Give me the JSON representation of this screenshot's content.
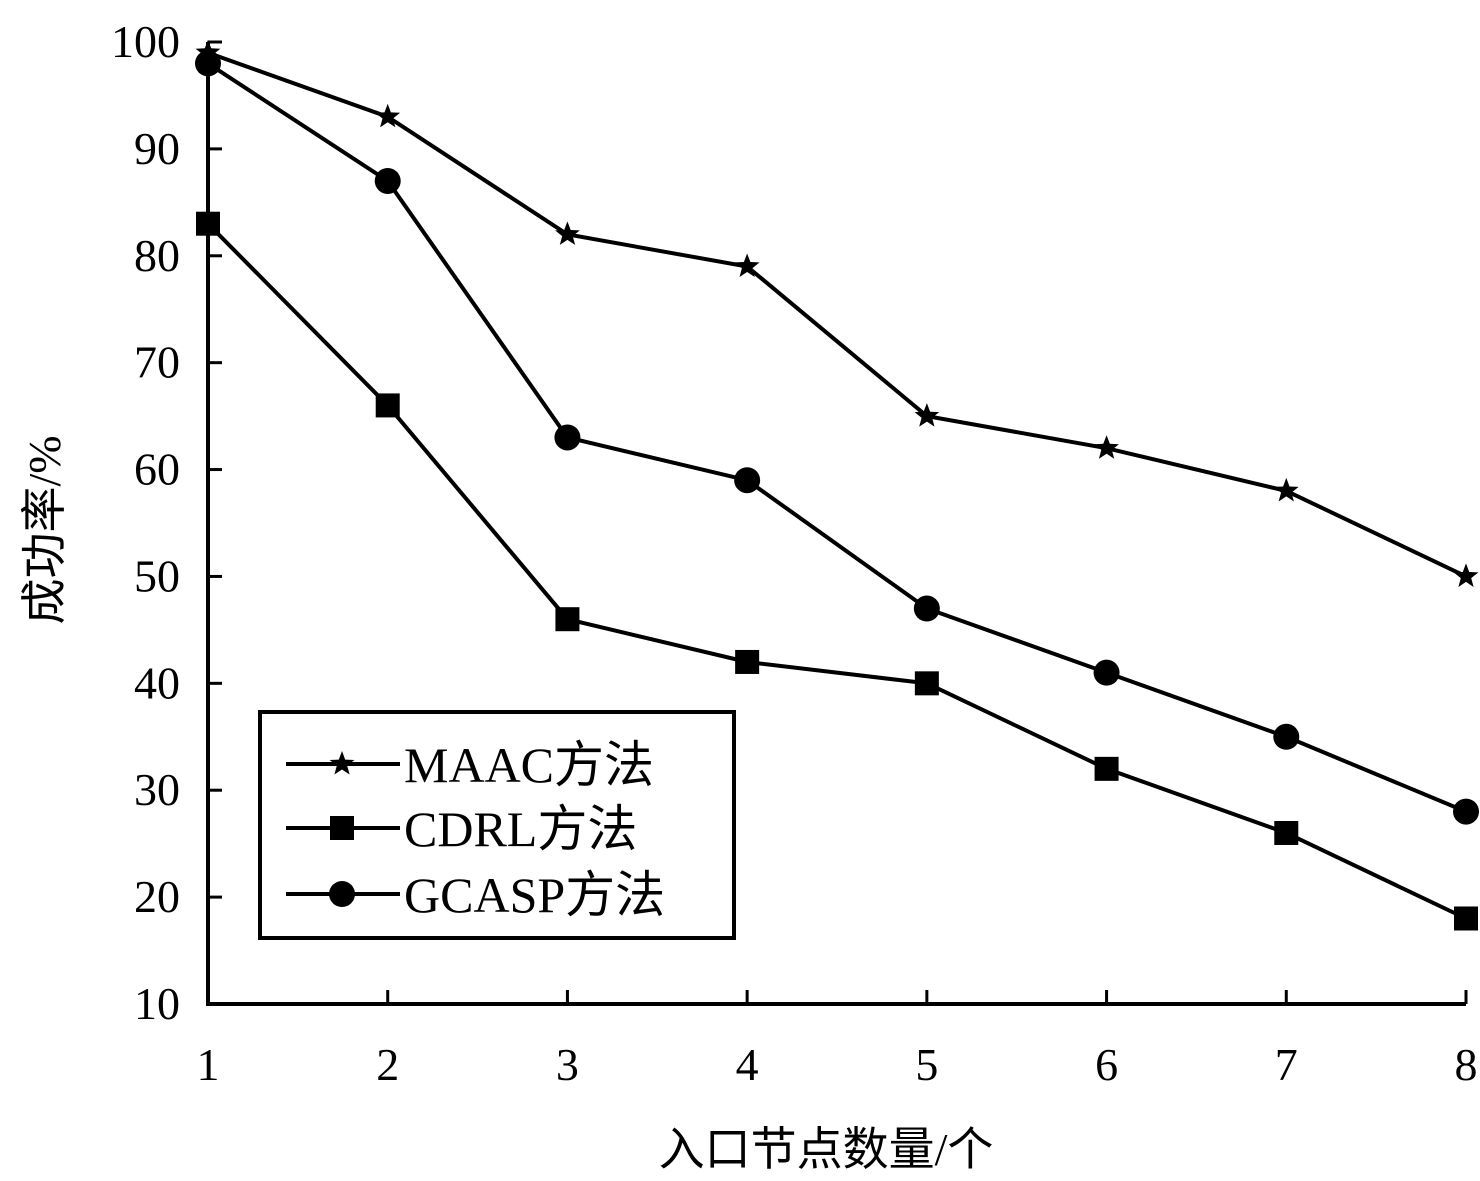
{
  "chart_data": {
    "type": "line",
    "title": "",
    "xlabel": "入口节点数量/个",
    "ylabel": "成功率/%",
    "x": [
      1,
      2,
      3,
      4,
      5,
      6,
      7,
      8
    ],
    "xlim": [
      1,
      8
    ],
    "ylim": [
      10,
      100
    ],
    "yticks": [
      10,
      20,
      30,
      40,
      50,
      60,
      70,
      80,
      90,
      100
    ],
    "grid": false,
    "legend_position": "bottom-left",
    "series": [
      {
        "name": "MAAC方法",
        "marker": "star",
        "values": [
          99,
          93,
          82,
          79,
          65,
          62,
          58,
          50
        ]
      },
      {
        "name": "CDRL方法",
        "marker": "square",
        "values": [
          83,
          66,
          46,
          42,
          40,
          32,
          26,
          18
        ]
      },
      {
        "name": "GCASP方法",
        "marker": "circle",
        "values": [
          98,
          87,
          63,
          59,
          47,
          41,
          35,
          28
        ]
      }
    ],
    "colors": {
      "line": "#000000",
      "marker": "#000000",
      "background": "#ffffff"
    }
  }
}
